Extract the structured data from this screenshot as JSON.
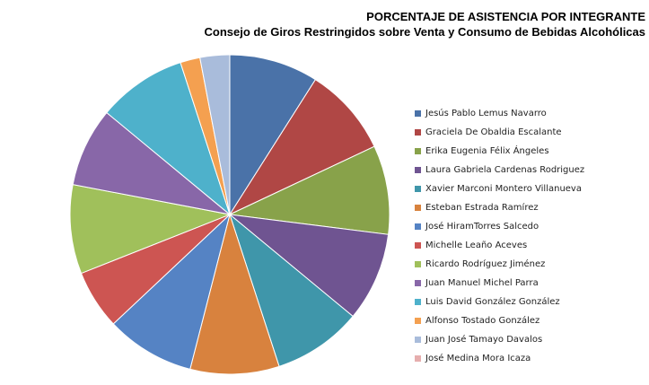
{
  "chart_data": {
    "type": "pie",
    "title": "PORCENTAJE DE ASISTENCIA POR INTEGRANTE",
    "subtitle": "Consejo de Giros Restringidos sobre Venta y Consumo de Bebidas Alcohólicas",
    "legend_position": "right",
    "series": [
      {
        "name": "Jesús Pablo Lemus Navarro",
        "value": 9.0,
        "color": "#4a72a8"
      },
      {
        "name": "Graciela De Obaldia Escalante",
        "value": 9.0,
        "color": "#b04745"
      },
      {
        "name": "Erika Eugenia Félix Ángeles",
        "value": 9.0,
        "color": "#88a24a"
      },
      {
        "name": "Laura Gabriela Cardenas Rodriguez",
        "value": 9.0,
        "color": "#6f5491"
      },
      {
        "name": "Xavier Marconi Montero Villanueva",
        "value": 9.0,
        "color": "#3f96aa"
      },
      {
        "name": "Esteban Estrada Ramírez",
        "value": 9.0,
        "color": "#d8823e"
      },
      {
        "name": "José HiramTorres Salcedo",
        "value": 9.0,
        "color": "#5583c4"
      },
      {
        "name": "Michelle Leaño Aceves",
        "value": 6.0,
        "color": "#cd5552"
      },
      {
        "name": "Ricardo Rodríguez Jiménez",
        "value": 9.0,
        "color": "#a0c05b"
      },
      {
        "name": "Juan Manuel Michel Parra",
        "value": 8.0,
        "color": "#8867a8"
      },
      {
        "name": "Luis David González González",
        "value": 9.0,
        "color": "#4eb1cb"
      },
      {
        "name": "Alfonso Tostado González",
        "value": 2.0,
        "color": "#f4a050"
      },
      {
        "name": "Juan José Tamayo Davalos",
        "value": 3.0,
        "color": "#a9bcdb"
      },
      {
        "name": "José Medina Mora Icaza",
        "value": 0.0,
        "color": "#e6aeae"
      }
    ]
  }
}
